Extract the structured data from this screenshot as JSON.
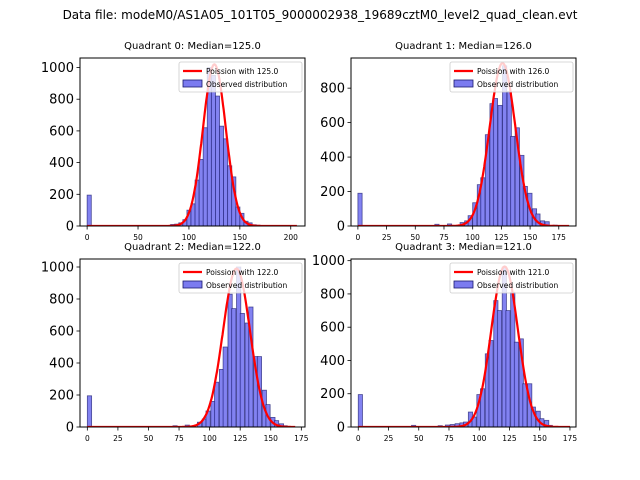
{
  "figure": {
    "suptitle": "Data file: modeM0/AS1A05_101T05_9000002938_19689cztM0_level2_quad_clean.evt"
  },
  "colors": {
    "bar_fill": "#7b7bf0",
    "bar_edge": "#1a1a6e",
    "fit_line": "#ff0000"
  },
  "chart_data": [
    {
      "type": "bar",
      "title": "Quadrant 0: Median=125.0",
      "xlim": [
        -7,
        214
      ],
      "ylim": [
        0,
        1060
      ],
      "xticks": [
        0,
        50,
        100,
        150,
        200
      ],
      "yticks": [
        0,
        200,
        400,
        600,
        800,
        1000
      ],
      "legend": {
        "placement": "top-right",
        "entries": [
          "Poission with 125.0",
          "Observed distribution"
        ]
      },
      "bin_width": 4.1,
      "bins": [
        [
          0,
          195
        ],
        [
          82,
          10
        ],
        [
          86,
          12
        ],
        [
          90,
          20
        ],
        [
          94,
          40
        ],
        [
          98,
          100
        ],
        [
          102,
          140
        ],
        [
          106,
          290
        ],
        [
          110,
          420
        ],
        [
          114,
          620
        ],
        [
          118,
          1000
        ],
        [
          122,
          950
        ],
        [
          126,
          820
        ],
        [
          130,
          630
        ],
        [
          134,
          550
        ],
        [
          138,
          380
        ],
        [
          142,
          310
        ],
        [
          146,
          120
        ],
        [
          150,
          80
        ],
        [
          154,
          30
        ],
        [
          158,
          20
        ],
        [
          162,
          8
        ],
        [
          166,
          5
        ]
      ],
      "fit": {
        "model": "poisson",
        "lambda": 125.0,
        "peak": 1020,
        "x_range": [
          0,
          206
        ]
      }
    },
    {
      "type": "bar",
      "title": "Quadrant 1: Median=126.0",
      "xlim": [
        -6,
        190
      ],
      "ylim": [
        0,
        975
      ],
      "xticks": [
        0,
        25,
        50,
        75,
        100,
        125,
        150,
        175
      ],
      "yticks": [
        0,
        200,
        400,
        600,
        800
      ],
      "legend": {
        "placement": "top-right",
        "entries": [
          "Poission with 126.0",
          "Observed distribution"
        ]
      },
      "bin_width": 3.7,
      "bins": [
        [
          0,
          190
        ],
        [
          67,
          10
        ],
        [
          78,
          12
        ],
        [
          89,
          20
        ],
        [
          93,
          30
        ],
        [
          96,
          60
        ],
        [
          100,
          135
        ],
        [
          104,
          240
        ],
        [
          107,
          280
        ],
        [
          111,
          530
        ],
        [
          115,
          710
        ],
        [
          118,
          740
        ],
        [
          122,
          700
        ],
        [
          126,
          930
        ],
        [
          130,
          780
        ],
        [
          133,
          520
        ],
        [
          137,
          570
        ],
        [
          141,
          410
        ],
        [
          144,
          230
        ],
        [
          148,
          190
        ],
        [
          152,
          100
        ],
        [
          155,
          70
        ],
        [
          159,
          30
        ],
        [
          163,
          25
        ],
        [
          170,
          5
        ]
      ],
      "fit": {
        "model": "poisson",
        "lambda": 126.0,
        "peak": 945,
        "x_range": [
          0,
          184
        ]
      }
    },
    {
      "type": "bar",
      "title": "Quadrant 2: Median=122.0",
      "xlim": [
        -6,
        178
      ],
      "ylim": [
        0,
        1050
      ],
      "xticks": [
        0,
        25,
        50,
        75,
        100,
        125,
        150,
        175
      ],
      "yticks": [
        0,
        200,
        400,
        600,
        800,
        1000
      ],
      "legend": {
        "placement": "top-right",
        "entries": [
          "Poission with 122.0",
          "Observed distribution"
        ]
      },
      "bin_width": 3.5,
      "bins": [
        [
          0,
          195
        ],
        [
          70,
          8
        ],
        [
          80,
          12
        ],
        [
          90,
          30
        ],
        [
          94,
          50
        ],
        [
          97,
          100
        ],
        [
          101,
          160
        ],
        [
          104,
          280
        ],
        [
          108,
          360
        ],
        [
          111,
          500
        ],
        [
          115,
          830
        ],
        [
          118,
          740
        ],
        [
          122,
          1000
        ],
        [
          125,
          710
        ],
        [
          129,
          650
        ],
        [
          132,
          750
        ],
        [
          136,
          440
        ],
        [
          139,
          440
        ],
        [
          143,
          230
        ],
        [
          146,
          140
        ],
        [
          150,
          60
        ],
        [
          153,
          40
        ],
        [
          157,
          20
        ],
        [
          160,
          8
        ]
      ],
      "fit": {
        "model": "poisson",
        "lambda": 122.0,
        "peak": 990,
        "x_range": [
          0,
          170
        ]
      }
    },
    {
      "type": "bar",
      "title": "Quadrant 3: Median=121.0",
      "xlim": [
        -6,
        180
      ],
      "ylim": [
        0,
        1010
      ],
      "xticks": [
        0,
        25,
        50,
        75,
        100,
        125,
        150,
        175
      ],
      "yticks": [
        0,
        200,
        400,
        600,
        800,
        1000
      ],
      "legend": {
        "placement": "top-right",
        "entries": [
          "Poission with 121.0",
          "Observed distribution"
        ]
      },
      "bin_width": 3.5,
      "bins": [
        [
          0,
          195
        ],
        [
          44,
          10
        ],
        [
          66,
          8
        ],
        [
          72,
          12
        ],
        [
          76,
          15
        ],
        [
          80,
          20
        ],
        [
          84,
          25
        ],
        [
          87,
          30
        ],
        [
          91,
          90
        ],
        [
          94,
          60
        ],
        [
          98,
          195
        ],
        [
          101,
          230
        ],
        [
          105,
          440
        ],
        [
          108,
          520
        ],
        [
          112,
          760
        ],
        [
          115,
          700
        ],
        [
          119,
          960
        ],
        [
          122,
          700
        ],
        [
          126,
          810
        ],
        [
          129,
          510
        ],
        [
          133,
          530
        ],
        [
          136,
          260
        ],
        [
          140,
          260
        ],
        [
          143,
          120
        ],
        [
          147,
          95
        ],
        [
          150,
          50
        ],
        [
          154,
          40
        ],
        [
          157,
          10
        ]
      ],
      "fit": {
        "model": "poisson",
        "lambda": 121.0,
        "peak": 965,
        "x_range": [
          0,
          175
        ]
      }
    }
  ]
}
